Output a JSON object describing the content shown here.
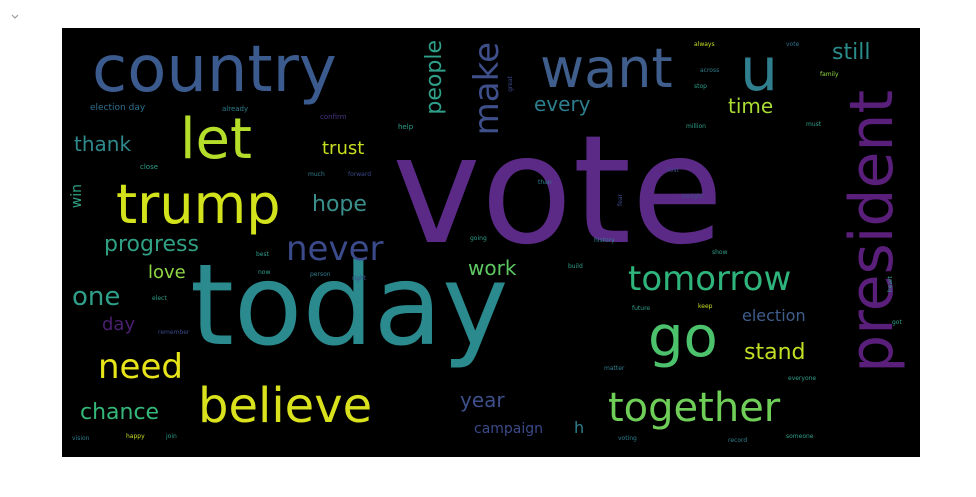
{
  "output_cell": {
    "collapse_icon": "chevron-down-icon"
  },
  "wordcloud": {
    "background": "#000000",
    "words": [
      {
        "text": "vote",
        "color": "#5b2a86"
      },
      {
        "text": "today",
        "color": "#2a8a8e"
      },
      {
        "text": "country",
        "color": "#3b5b8e"
      },
      {
        "text": "want",
        "color": "#3f5e8c"
      },
      {
        "text": "u",
        "color": "#2f7f8e"
      },
      {
        "text": "let",
        "color": "#b5de2b"
      },
      {
        "text": "trump",
        "color": "#d2e21b"
      },
      {
        "text": "president",
        "color": "#5a1f7a"
      },
      {
        "text": "believe",
        "color": "#d9e21c"
      },
      {
        "text": "go",
        "color": "#4cc26c"
      },
      {
        "text": "together",
        "color": "#6ece58"
      },
      {
        "text": "tomorrow",
        "color": "#2fb47c"
      },
      {
        "text": "never",
        "color": "#3b4a8a"
      },
      {
        "text": "need",
        "color": "#e7e419"
      },
      {
        "text": "make",
        "color": "#3e4f8a"
      },
      {
        "text": "people",
        "color": "#2f9f8a"
      },
      {
        "text": "still",
        "color": "#2b8c8c"
      },
      {
        "text": "every",
        "color": "#2d7f8e"
      },
      {
        "text": "time",
        "color": "#a8db34"
      },
      {
        "text": "thank",
        "color": "#2f8a8e"
      },
      {
        "text": "trust",
        "color": "#c8df20"
      },
      {
        "text": "hope",
        "color": "#3a8f8c"
      },
      {
        "text": "progress",
        "color": "#2fa084"
      },
      {
        "text": "love",
        "color": "#8fd744"
      },
      {
        "text": "one",
        "color": "#2f9f8a"
      },
      {
        "text": "work",
        "color": "#5ec962"
      },
      {
        "text": "day",
        "color": "#4a1f70"
      },
      {
        "text": "stand",
        "color": "#c2df23"
      },
      {
        "text": "election",
        "color": "#3f5e8c"
      },
      {
        "text": "chance",
        "color": "#35b779"
      },
      {
        "text": "year",
        "color": "#3e4f8a"
      },
      {
        "text": "campaign",
        "color": "#3b4a8a"
      },
      {
        "text": "h",
        "color": "#2f7f8e"
      },
      {
        "text": "win",
        "color": "#2fa084"
      },
      {
        "text": "election day",
        "color": "#2f6f8e"
      },
      {
        "text": "already",
        "color": "#2b7f8e"
      },
      {
        "text": "confirm",
        "color": "#46337e"
      },
      {
        "text": "help",
        "color": "#2f9f8a"
      },
      {
        "text": "close",
        "color": "#2f9f8a"
      },
      {
        "text": "much",
        "color": "#2f7f8e"
      },
      {
        "text": "forward",
        "color": "#3b4a8a"
      },
      {
        "text": "always",
        "color": "#c8df20"
      },
      {
        "text": "across",
        "color": "#2f7f8e"
      },
      {
        "text": "stop",
        "color": "#2f9f8a"
      },
      {
        "text": "family",
        "color": "#8fd744"
      },
      {
        "text": "million",
        "color": "#2f9f8a"
      },
      {
        "text": "must",
        "color": "#2f9f8a"
      },
      {
        "text": "vote",
        "color": "#2f6f8e"
      },
      {
        "text": "great",
        "color": "#3b4a8a"
      },
      {
        "text": "than",
        "color": "#2f7f8e"
      },
      {
        "text": "fear",
        "color": "#3b4a8a"
      },
      {
        "text": "tonight",
        "color": "#3e4f8a"
      },
      {
        "text": "lost",
        "color": "#3b4a8a"
      },
      {
        "text": "going",
        "color": "#2f9f8a"
      },
      {
        "text": "history",
        "color": "#2f7f8e"
      },
      {
        "text": "best",
        "color": "#2f9f8a"
      },
      {
        "text": "show",
        "color": "#2f9f8a"
      },
      {
        "text": "now",
        "color": "#2f9f8a"
      },
      {
        "text": "person",
        "color": "#2f7f8e"
      },
      {
        "text": "right",
        "color": "#3b4a8a"
      },
      {
        "text": "build",
        "color": "#2f9f8a"
      },
      {
        "text": "elect",
        "color": "#2f9f8a"
      },
      {
        "text": "future",
        "color": "#2f9f8a"
      },
      {
        "text": "keep",
        "color": "#c8df20"
      },
      {
        "text": "remember",
        "color": "#3b4a8a"
      },
      {
        "text": "matter",
        "color": "#2f7f8e"
      },
      {
        "text": "everyone",
        "color": "#2f9f8a"
      },
      {
        "text": "heart",
        "color": "#2f9f8a"
      },
      {
        "text": "got",
        "color": "#2f9f8a"
      },
      {
        "text": "vision",
        "color": "#2f7f8e"
      },
      {
        "text": "happy",
        "color": "#c8df20"
      },
      {
        "text": "join",
        "color": "#2f9f8a"
      },
      {
        "text": "voting",
        "color": "#2f7f8e"
      },
      {
        "text": "record",
        "color": "#2f7f8e"
      },
      {
        "text": "someone",
        "color": "#2f9f8a"
      }
    ]
  }
}
